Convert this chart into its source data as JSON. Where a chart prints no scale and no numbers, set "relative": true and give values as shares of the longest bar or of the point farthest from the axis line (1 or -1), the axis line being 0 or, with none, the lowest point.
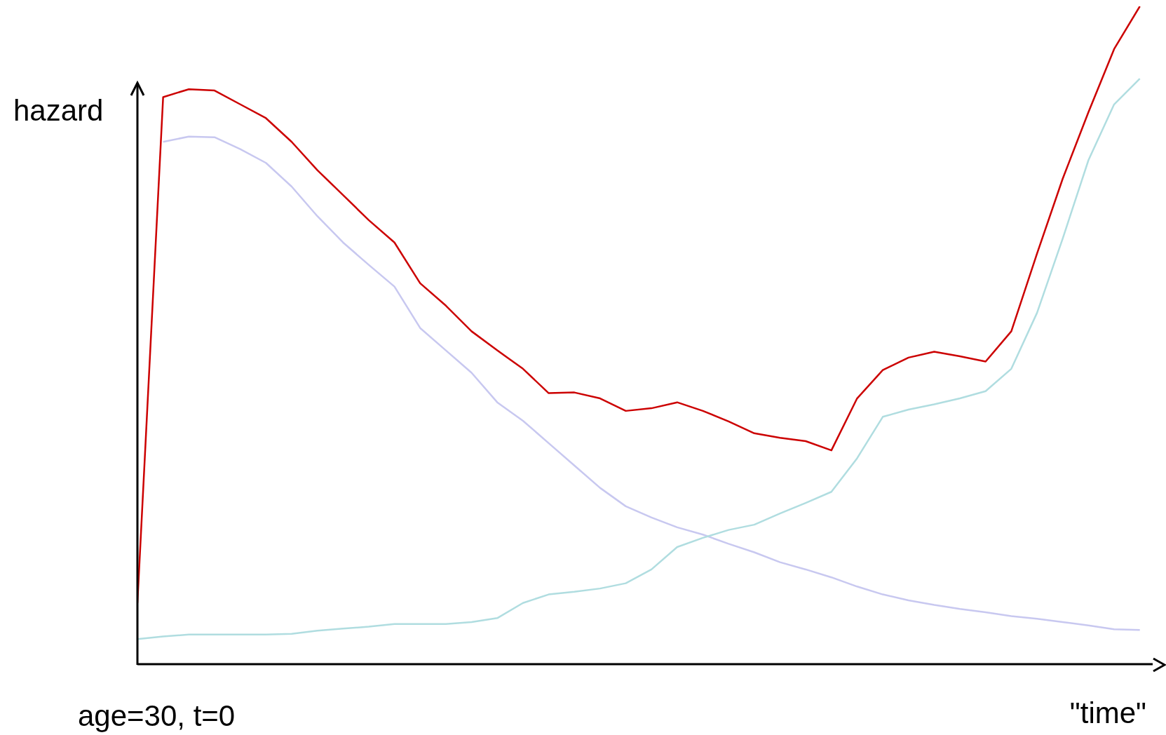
{
  "chart_data": {
    "type": "line",
    "relative": true,
    "ylabel": "hazard",
    "xlabel": "\"time\"",
    "annotations": [
      "age=30, t=0"
    ],
    "categories": [
      null,
      null,
      null,
      null,
      null,
      null,
      null,
      null,
      null,
      null,
      null,
      null,
      null,
      null,
      null,
      null,
      null,
      null,
      null,
      null,
      null,
      null,
      null,
      null,
      null,
      null,
      null,
      null,
      null,
      null,
      null,
      null,
      null,
      null,
      null,
      null,
      null,
      null,
      null,
      null
    ],
    "series": [
      {
        "color": "#cc0000",
        "values": [
          0.093,
          0.862,
          0.874,
          0.872,
          0.851,
          0.83,
          0.794,
          0.751,
          0.713,
          0.675,
          0.641,
          0.579,
          0.545,
          0.506,
          0.477,
          0.449,
          0.412,
          0.413,
          0.404,
          0.385,
          0.389,
          0.398,
          0.385,
          0.369,
          0.351,
          0.344,
          0.339,
          0.325,
          0.404,
          0.447,
          0.466,
          0.475,
          0.468,
          0.46,
          0.506,
          0.624,
          0.738,
          0.839,
          0.935,
          1
        ]
      },
      {
        "color": "#c8c8f0",
        "values": [
          null,
          0.794,
          0.802,
          0.801,
          0.783,
          0.762,
          0.726,
          0.681,
          0.641,
          0.607,
          0.574,
          0.511,
          0.477,
          0.443,
          0.398,
          0.37,
          0.336,
          0.302,
          0.268,
          0.24,
          0.223,
          0.208,
          0.197,
          0.183,
          0.17,
          0.155,
          0.144,
          0.132,
          0.118,
          0.106,
          0.097,
          0.09,
          0.084,
          0.079,
          0.073,
          0.069,
          0.064,
          0.059,
          0.053,
          0.052
        ]
      },
      {
        "color": "#b0dde0",
        "values": [
          0.038,
          0.042,
          0.045,
          0.045,
          0.045,
          0.045,
          0.046,
          0.051,
          0.054,
          0.057,
          0.061,
          0.061,
          0.061,
          0.064,
          0.07,
          0.093,
          0.106,
          0.11,
          0.115,
          0.123,
          0.144,
          0.178,
          0.192,
          0.204,
          0.212,
          0.229,
          0.245,
          0.262,
          0.313,
          0.376,
          0.387,
          0.395,
          0.404,
          0.415,
          0.449,
          0.534,
          0.647,
          0.766,
          0.851,
          0.89
        ]
      }
    ]
  }
}
